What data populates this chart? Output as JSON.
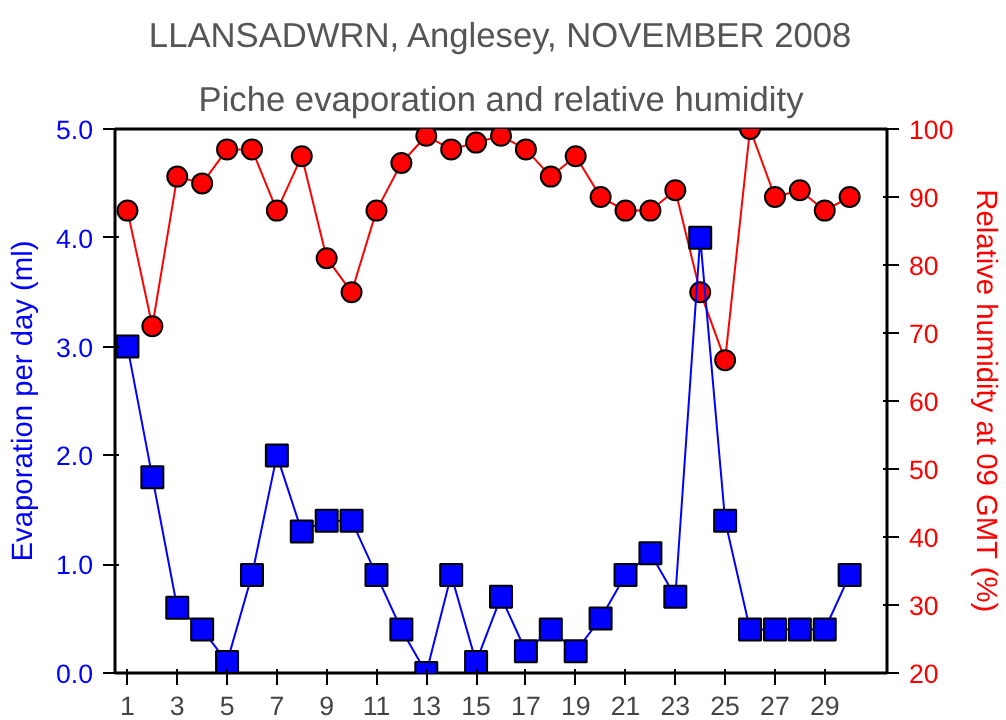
{
  "chart_data": {
    "type": "line",
    "title": "LLANSADWRN, Anglesey, NOVEMBER 2008",
    "subtitle": "Piche evaporation and relative humidity",
    "ylabel": "Evaporation per day (ml)",
    "y2label": "Relative humidity at 09 GMT (%)",
    "x": [
      1,
      2,
      3,
      4,
      5,
      6,
      7,
      8,
      9,
      10,
      11,
      12,
      13,
      14,
      15,
      16,
      17,
      18,
      19,
      20,
      21,
      22,
      23,
      24,
      25,
      26,
      27,
      28,
      29,
      30
    ],
    "series": [
      {
        "color": "#ff0000",
        "axis": "y2",
        "marker": "circle",
        "values": [
          88,
          71,
          93,
          92,
          97,
          97,
          88,
          96,
          81,
          76,
          88,
          95,
          99,
          97,
          98,
          99,
          97,
          93,
          96,
          90,
          88,
          88,
          91,
          76,
          66,
          100,
          90,
          91,
          88,
          90
        ]
      },
      {
        "color": "#0000ff",
        "marker": "square",
        "values": [
          3.0,
          1.8,
          0.6,
          0.4,
          0.1,
          0.9,
          2.0,
          1.3,
          1.4,
          1.4,
          0.9,
          0.4,
          0.0,
          0.9,
          0.1,
          0.7,
          0.2,
          0.4,
          0.2,
          0.5,
          0.9,
          1.1,
          0.7,
          4.0,
          1.4,
          0.4,
          0.4,
          0.4,
          0.4,
          0.9
        ]
      }
    ],
    "xlim": [
      0.5,
      31.5
    ],
    "xticks": [
      1,
      3,
      5,
      7,
      9,
      11,
      13,
      15,
      17,
      19,
      21,
      23,
      25,
      27,
      29
    ],
    "ylim": [
      0,
      5
    ],
    "yticks": [
      {
        "value": 0,
        "label": "0.0"
      },
      {
        "value": 1,
        "label": "1.0"
      },
      {
        "value": 2,
        "label": "2.0"
      },
      {
        "value": 3,
        "label": "3.0"
      },
      {
        "value": 4,
        "label": "4.0"
      },
      {
        "value": 5,
        "label": "5.0"
      }
    ],
    "y2lim": [
      20,
      100
    ],
    "y2ticks": [
      20,
      30,
      40,
      50,
      60,
      70,
      80,
      90,
      100
    ],
    "grid": false
  }
}
